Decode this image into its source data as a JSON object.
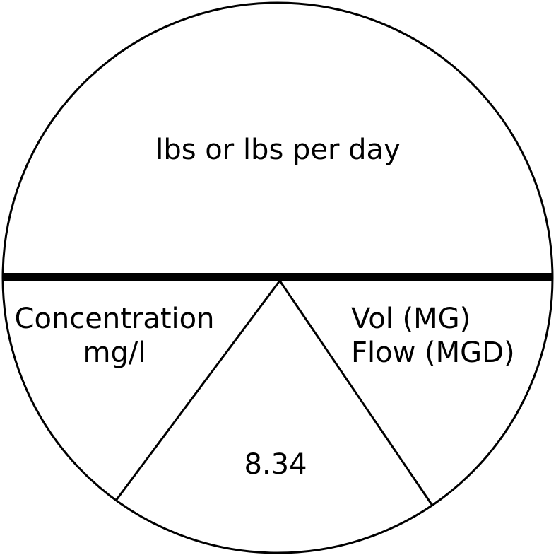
{
  "diagram": {
    "top": {
      "text": "lbs or lbs per day"
    },
    "bottom_left": {
      "line1": "Concentration",
      "line2": "mg/l"
    },
    "bottom_right": {
      "line1": "Vol (MG)",
      "line2": "Flow (MGD)"
    },
    "bottom_center": {
      "text": "8.34"
    }
  }
}
